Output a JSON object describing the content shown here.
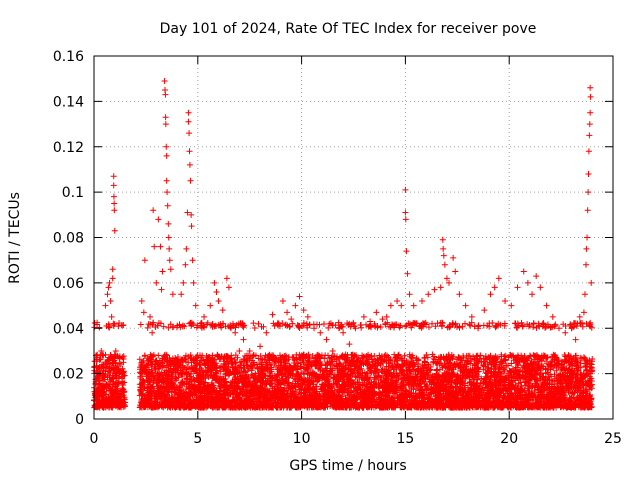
{
  "chart_data": {
    "type": "scatter",
    "title": "Day 101 of 2024, Rate Of TEC Index for receiver pove",
    "xlabel": "GPS time / hours",
    "ylabel": "ROTI / TECUs",
    "xlim": [
      0,
      25
    ],
    "ylim": [
      0,
      0.16
    ],
    "xticks": [
      "0",
      "5",
      "10",
      "15",
      "20",
      "25"
    ],
    "xtick_values": [
      0,
      5,
      10,
      15,
      20,
      25
    ],
    "yticks": [
      "0",
      "0.02",
      "0.04",
      "0.06",
      "0.08",
      "0.1",
      "0.12",
      "0.14",
      "0.16"
    ],
    "ytick_values": [
      0,
      0.02,
      0.04,
      0.06,
      0.08,
      0.1,
      0.12,
      0.14,
      0.16
    ],
    "grid": true,
    "marker": "+",
    "color": "#ff0000",
    "observation_windows_hours": [
      [
        0,
        1.5
      ],
      [
        2.2,
        24
      ]
    ],
    "baseline_band": [
      0.005,
      0.03
    ],
    "series": [
      {
        "points": [
          [
            0.05,
            0.012
          ],
          [
            0.15,
            0.018
          ],
          [
            0.25,
            0.022
          ],
          [
            0.35,
            0.03
          ],
          [
            0.45,
            0.028
          ],
          [
            0.55,
            0.05
          ],
          [
            0.6,
            0.041
          ],
          [
            0.65,
            0.055
          ],
          [
            0.7,
            0.058
          ],
          [
            0.75,
            0.06
          ],
          [
            0.8,
            0.052
          ],
          [
            0.85,
            0.045
          ],
          [
            0.9,
            0.066
          ],
          [
            0.9,
            0.062
          ],
          [
            0.95,
            0.107
          ],
          [
            0.95,
            0.103
          ],
          [
            0.96,
            0.098
          ],
          [
            0.97,
            0.095
          ],
          [
            0.98,
            0.092
          ],
          [
            1.0,
            0.083
          ],
          [
            1.05,
            0.03
          ],
          [
            1.2,
            0.02
          ],
          [
            1.4,
            0.015
          ],
          [
            2.3,
            0.052
          ],
          [
            2.4,
            0.047
          ],
          [
            2.45,
            0.07
          ],
          [
            2.6,
            0.02
          ],
          [
            2.7,
            0.045
          ],
          [
            2.8,
            0.038
          ],
          [
            2.85,
            0.092
          ],
          [
            2.9,
            0.076
          ],
          [
            3.0,
            0.06
          ],
          [
            3.1,
            0.088
          ],
          [
            3.2,
            0.076
          ],
          [
            3.25,
            0.057
          ],
          [
            3.3,
            0.065
          ],
          [
            3.4,
            0.149
          ],
          [
            3.42,
            0.145
          ],
          [
            3.44,
            0.143
          ],
          [
            3.45,
            0.133
          ],
          [
            3.46,
            0.13
          ],
          [
            3.48,
            0.12
          ],
          [
            3.5,
            0.116
          ],
          [
            3.5,
            0.105
          ],
          [
            3.52,
            0.1
          ],
          [
            3.55,
            0.094
          ],
          [
            3.58,
            0.086
          ],
          [
            3.6,
            0.08
          ],
          [
            3.62,
            0.075
          ],
          [
            3.65,
            0.07
          ],
          [
            3.7,
            0.066
          ],
          [
            3.8,
            0.055
          ],
          [
            4.2,
            0.055
          ],
          [
            4.3,
            0.06
          ],
          [
            4.4,
            0.068
          ],
          [
            4.45,
            0.075
          ],
          [
            4.5,
            0.091
          ],
          [
            4.55,
            0.135
          ],
          [
            4.55,
            0.131
          ],
          [
            4.58,
            0.126
          ],
          [
            4.6,
            0.118
          ],
          [
            4.62,
            0.112
          ],
          [
            4.65,
            0.105
          ],
          [
            4.68,
            0.09
          ],
          [
            4.7,
            0.085
          ],
          [
            4.75,
            0.07
          ],
          [
            4.8,
            0.06
          ],
          [
            4.9,
            0.05
          ],
          [
            5.3,
            0.045
          ],
          [
            5.6,
            0.05
          ],
          [
            5.8,
            0.06
          ],
          [
            5.9,
            0.056
          ],
          [
            6.0,
            0.052
          ],
          [
            6.2,
            0.048
          ],
          [
            6.4,
            0.062
          ],
          [
            6.5,
            0.058
          ],
          [
            6.6,
            0.04
          ],
          [
            6.8,
            0.038
          ],
          [
            7.0,
            0.03
          ],
          [
            7.2,
            0.035
          ],
          [
            7.5,
            0.03
          ],
          [
            7.8,
            0.028
          ],
          [
            8.0,
            0.032
          ],
          [
            8.3,
            0.038
          ],
          [
            8.6,
            0.046
          ],
          [
            8.9,
            0.042
          ],
          [
            9.1,
            0.052
          ],
          [
            9.3,
            0.047
          ],
          [
            9.5,
            0.044
          ],
          [
            9.7,
            0.05
          ],
          [
            9.9,
            0.054
          ],
          [
            10.1,
            0.048
          ],
          [
            10.3,
            0.045
          ],
          [
            10.6,
            0.04
          ],
          [
            10.9,
            0.038
          ],
          [
            11.2,
            0.035
          ],
          [
            11.5,
            0.03
          ],
          [
            11.8,
            0.04
          ],
          [
            12.0,
            0.038
          ],
          [
            12.3,
            0.033
          ],
          [
            12.6,
            0.04
          ],
          [
            13.0,
            0.045
          ],
          [
            13.3,
            0.043
          ],
          [
            13.6,
            0.047
          ],
          [
            13.9,
            0.044
          ],
          [
            14.1,
            0.045
          ],
          [
            14.3,
            0.05
          ],
          [
            14.6,
            0.052
          ],
          [
            14.8,
            0.05
          ],
          [
            15.0,
            0.101
          ],
          [
            15.0,
            0.091
          ],
          [
            15.02,
            0.088
          ],
          [
            15.05,
            0.074
          ],
          [
            15.1,
            0.064
          ],
          [
            15.2,
            0.055
          ],
          [
            15.4,
            0.05
          ],
          [
            15.8,
            0.052
          ],
          [
            16.1,
            0.055
          ],
          [
            16.4,
            0.057
          ],
          [
            16.7,
            0.058
          ],
          [
            16.8,
            0.079
          ],
          [
            16.82,
            0.075
          ],
          [
            16.85,
            0.072
          ],
          [
            16.9,
            0.068
          ],
          [
            17.0,
            0.062
          ],
          [
            17.1,
            0.06
          ],
          [
            17.3,
            0.071
          ],
          [
            17.4,
            0.065
          ],
          [
            17.6,
            0.055
          ],
          [
            17.9,
            0.05
          ],
          [
            18.2,
            0.045
          ],
          [
            18.5,
            0.04
          ],
          [
            18.8,
            0.048
          ],
          [
            19.1,
            0.055
          ],
          [
            19.3,
            0.058
          ],
          [
            19.5,
            0.062
          ],
          [
            19.8,
            0.052
          ],
          [
            20.1,
            0.05
          ],
          [
            20.4,
            0.058
          ],
          [
            20.7,
            0.065
          ],
          [
            20.9,
            0.06
          ],
          [
            21.1,
            0.055
          ],
          [
            21.3,
            0.063
          ],
          [
            21.5,
            0.058
          ],
          [
            21.8,
            0.05
          ],
          [
            22.1,
            0.045
          ],
          [
            22.4,
            0.04
          ],
          [
            22.7,
            0.038
          ],
          [
            23.0,
            0.04
          ],
          [
            23.2,
            0.035
          ],
          [
            23.4,
            0.045
          ],
          [
            23.6,
            0.047
          ],
          [
            23.65,
            0.055
          ],
          [
            23.7,
            0.068
          ],
          [
            23.72,
            0.075
          ],
          [
            23.75,
            0.08
          ],
          [
            23.78,
            0.092
          ],
          [
            23.8,
            0.1
          ],
          [
            23.82,
            0.108
          ],
          [
            23.84,
            0.118
          ],
          [
            23.86,
            0.125
          ],
          [
            23.88,
            0.13
          ],
          [
            23.9,
            0.135
          ],
          [
            23.9,
            0.146
          ],
          [
            23.92,
            0.142
          ],
          [
            23.95,
            0.06
          ]
        ]
      }
    ]
  }
}
